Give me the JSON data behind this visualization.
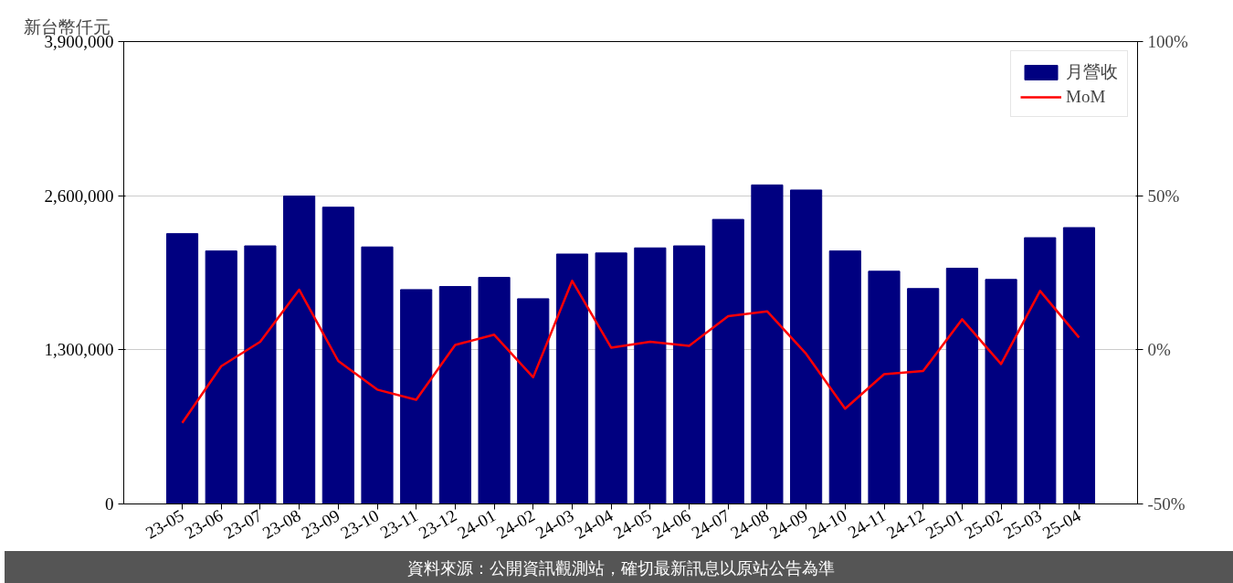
{
  "chart_data": {
    "type": "bar",
    "ylabel": "新台幣仟元",
    "categories": [
      "23-05",
      "23-06",
      "23-07",
      "23-08",
      "23-09",
      "23-10",
      "23-11",
      "23-12",
      "24-01",
      "24-02",
      "24-03",
      "24-04",
      "24-05",
      "24-06",
      "24-07",
      "24-08",
      "24-09",
      "24-10",
      "24-11",
      "24-12",
      "25-01",
      "25-02",
      "25-03",
      "25-04"
    ],
    "series": [
      {
        "name": "月營收",
        "color": "#000080",
        "values": [
          2280000,
          2134000,
          2177000,
          2597000,
          2503000,
          2168000,
          1808000,
          1834000,
          1911000,
          1731000,
          2108000,
          2117000,
          2160000,
          2177000,
          2400000,
          2691000,
          2648000,
          2134000,
          1963000,
          1817000,
          1988000,
          1894000,
          2246000,
          2331000
        ]
      },
      {
        "name": "MoM",
        "type": "line",
        "axis": "y2",
        "color": "#ff0000",
        "values": [
          -23.7,
          -5.3,
          2.6,
          19.5,
          -3.6,
          -12.9,
          -16.2,
          1.6,
          4.9,
          -8.9,
          22.4,
          0.7,
          2.6,
          1.3,
          10.9,
          12.5,
          -1.3,
          -19.1,
          -7.9,
          -6.9,
          9.9,
          -4.6,
          19.1,
          4.0
        ]
      }
    ],
    "ylim": [
      0,
      3900000
    ],
    "yticks": [
      {
        "value": 0,
        "label": "0"
      },
      {
        "value": 1300000,
        "label": "1,300,000"
      },
      {
        "value": 2600000,
        "label": "2,600,000"
      },
      {
        "value": 3900000,
        "label": "3,900,000"
      }
    ],
    "y2lim": [
      -50,
      100
    ],
    "y2ticks": [
      {
        "value": -50,
        "label": "-50%"
      },
      {
        "value": 0,
        "label": "0%"
      },
      {
        "value": 50,
        "label": "50%"
      },
      {
        "value": 100,
        "label": "100%"
      }
    ],
    "grid": "y",
    "legend": "top right",
    "annotations": [
      "資料來源：公開資訊觀測站，確切最新訊息以原站公告為準"
    ]
  }
}
